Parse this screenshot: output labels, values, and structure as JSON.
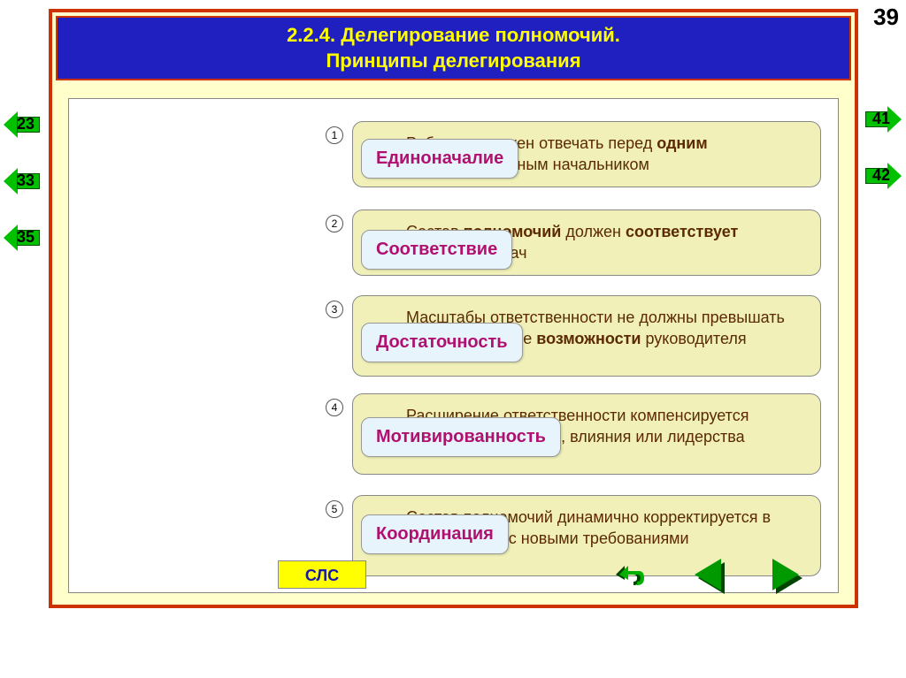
{
  "page_number": "39",
  "title_line1": "2.2.4. Делегирование полномочий.",
  "title_line2": "Принципы делегирования",
  "left_nav": [
    "23",
    "33",
    "35"
  ],
  "right_nav": [
    "41",
    "42"
  ],
  "sls_label": "СЛС",
  "items": [
    {
      "num": "1",
      "label": "Единоначалие",
      "bg_html": "Работник должен отвечать перед <b>одним</b> непосредственным начальником"
    },
    {
      "num": "2",
      "label": "Соответствие",
      "bg_html": "Состав <b>полномочий</b> должен <b>соответствует</b> характеру задач"
    },
    {
      "num": "3",
      "label": "Достаточность",
      "bg_html": "Масштабы ответственности не должны превышать индивидуальные <b>возможности</b> руководителя"
    },
    {
      "num": "4",
      "label": "Мотивированность",
      "bg_html": "Расширение ответственности компенсируется повышением оплаты, влияния или лидерства"
    },
    {
      "num": "5",
      "label": "Координация",
      "bg_html": "Состав полномочий динамично корректируется в соответствии с новыми требованиями"
    }
  ],
  "layout": {
    "row_tops": [
      25,
      125,
      222,
      333,
      448
    ],
    "chip_tops": [
      45,
      148,
      253,
      360,
      470
    ],
    "bg_heights": [
      70,
      70,
      92,
      92,
      92
    ]
  },
  "colors": {
    "frame_border": "#cc3300",
    "frame_bg": "#ffffcc",
    "title_bg": "#2020c0",
    "title_text": "#ffff00",
    "chip_bg": "#e8f4fb",
    "chip_text": "#b01070",
    "card_bg": "#f0f0b8",
    "card_text": "#5c2a00",
    "arrow_green": "#00c000",
    "sls_bg": "#ffff00",
    "sls_text": "#1818a8"
  }
}
